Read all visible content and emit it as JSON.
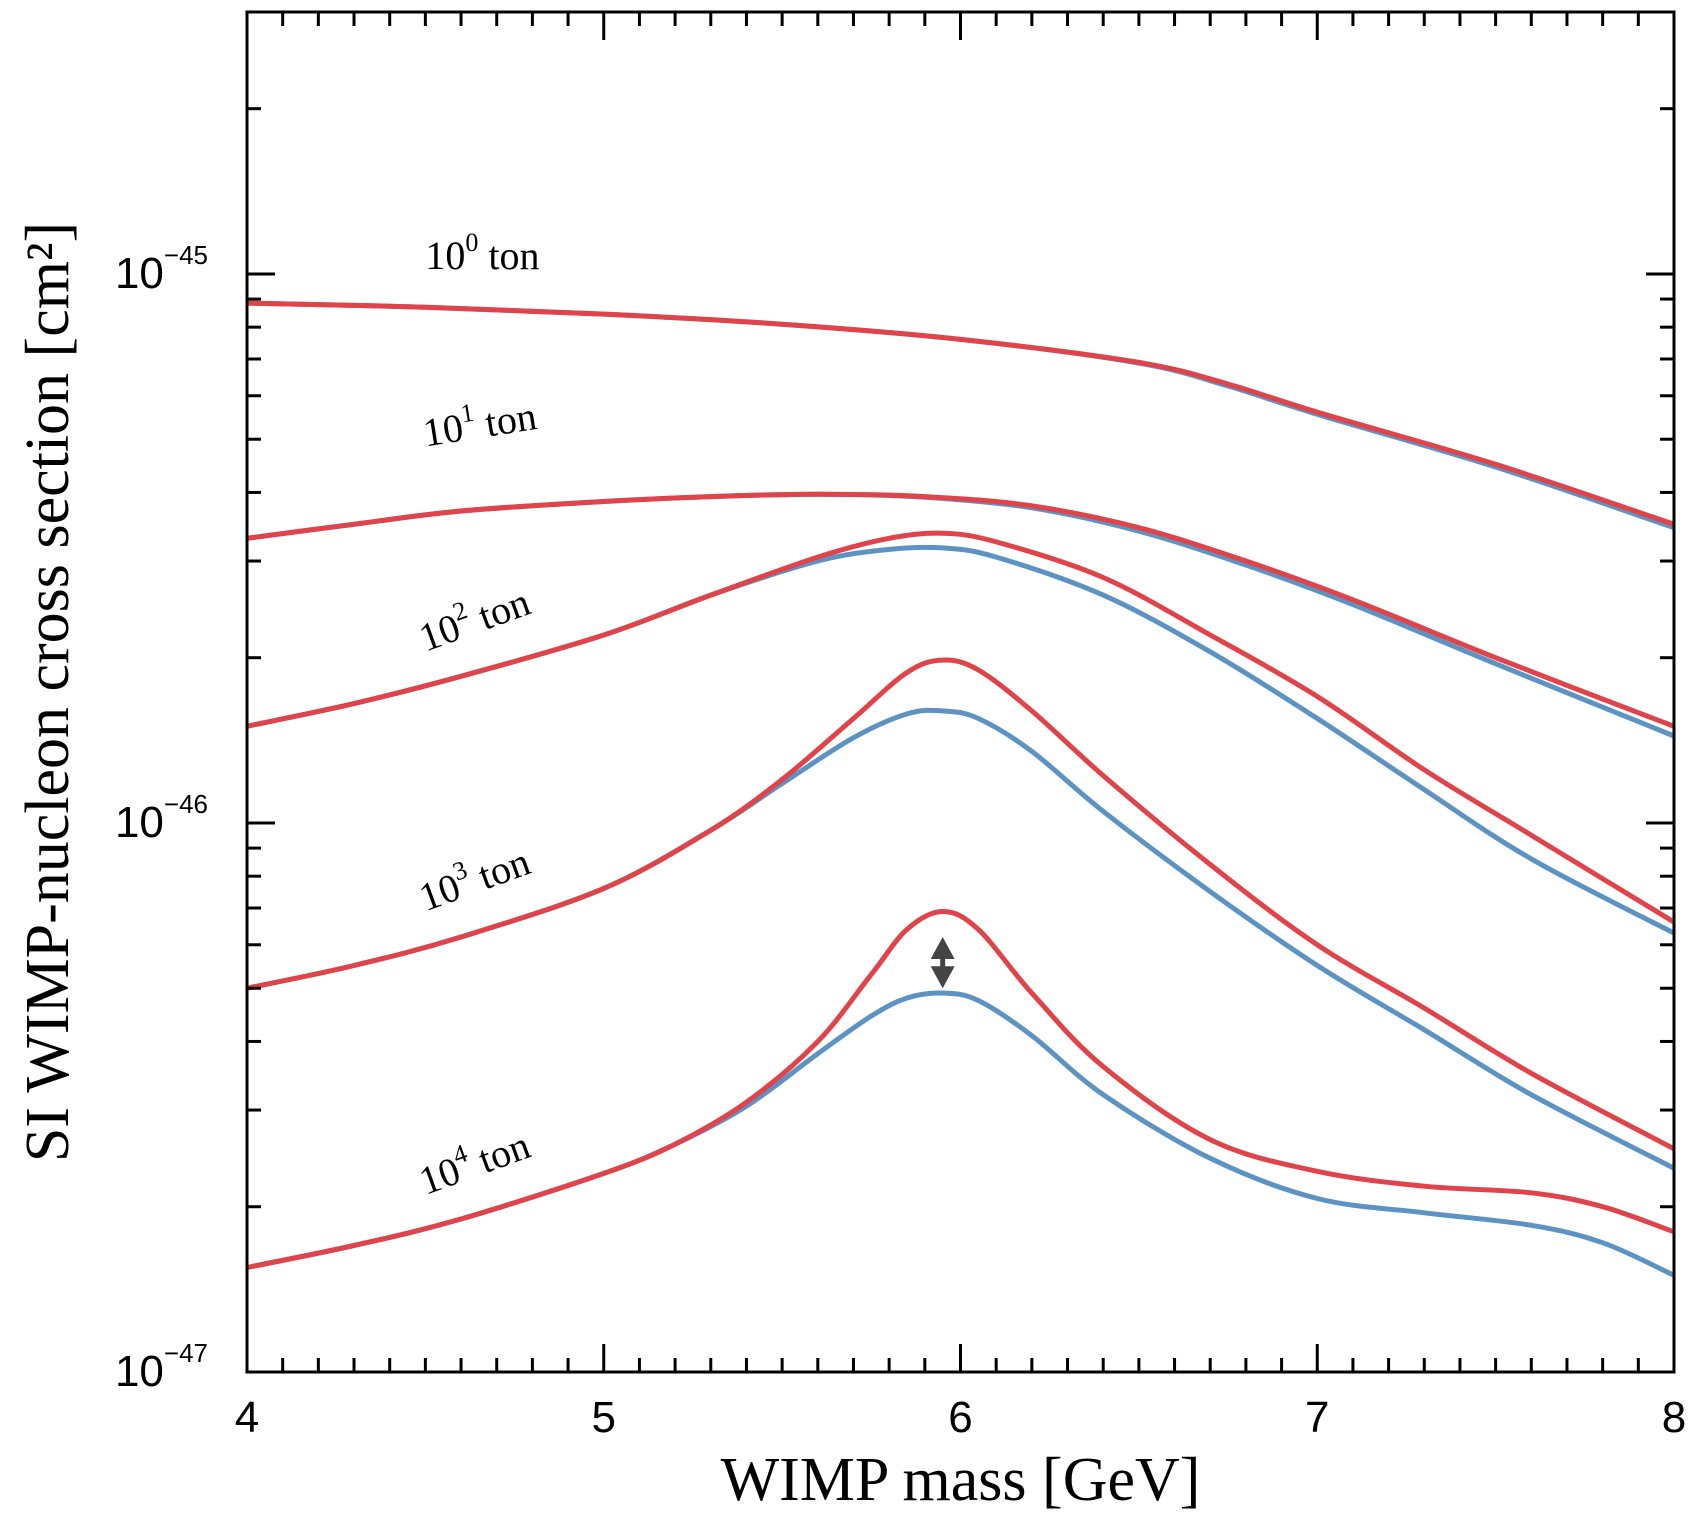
{
  "chart_data": {
    "type": "line",
    "xlabel": "WIMP mass [GeV]",
    "ylabel": "SI WIMP-nucleon cross section [cm²]",
    "xlim": [
      4,
      8
    ],
    "ylim": [
      1e-47,
      3e-45
    ],
    "yscale": "log",
    "x_ticks": [
      {
        "value": 4,
        "label": "4"
      },
      {
        "value": 5,
        "label": "5"
      },
      {
        "value": 6,
        "label": "6"
      },
      {
        "value": 7,
        "label": "7"
      },
      {
        "value": 8,
        "label": "8"
      }
    ],
    "y_ticks": [
      {
        "value": 1e-47,
        "base": "10",
        "exp": "−47"
      },
      {
        "value": 1e-46,
        "base": "10",
        "exp": "−46"
      },
      {
        "value": 1e-45,
        "base": "10",
        "exp": "−45"
      }
    ],
    "grid": false,
    "colors": {
      "red": "#e0434a",
      "blue": "#5d93c3",
      "arrow": "#444444"
    },
    "curves": [
      {
        "label_base": "10",
        "label_exp": "0",
        "label_unit": " ton",
        "label_x": 4.5,
        "label_y": 1.02e-45,
        "label_angle": 0,
        "x": [
          4.0,
          4.5,
          5.0,
          5.5,
          6.0,
          6.5,
          6.75,
          7.0,
          7.5,
          8.0
        ],
        "red": [
          8.85e-46,
          8.7e-46,
          8.45e-46,
          8.1e-46,
          7.6e-46,
          6.9e-46,
          6.3e-46,
          5.6e-46,
          4.5e-46,
          3.5e-46
        ],
        "blue": [
          8.85e-46,
          8.7e-46,
          8.45e-46,
          8.1e-46,
          7.6e-46,
          6.88e-46,
          6.25e-46,
          5.55e-46,
          4.45e-46,
          3.45e-46
        ]
      },
      {
        "label_base": "10",
        "label_exp": "1",
        "label_unit": " ton",
        "label_x": 4.5,
        "label_y": 4.85e-46,
        "label_angle": -9,
        "x": [
          4.0,
          4.3,
          4.6,
          5.0,
          5.3,
          5.6,
          5.9,
          6.2,
          6.5,
          6.8,
          7.1,
          7.5,
          8.0
        ],
        "red": [
          3.3e-46,
          3.5e-46,
          3.7e-46,
          3.85e-46,
          3.93e-46,
          3.97e-46,
          3.93e-46,
          3.78e-46,
          3.45e-46,
          3e-46,
          2.55e-46,
          2e-46,
          1.5e-46
        ],
        "blue": [
          3.3e-46,
          3.5e-46,
          3.7e-46,
          3.85e-46,
          3.93e-46,
          3.97e-46,
          3.92e-46,
          3.75e-46,
          3.4e-46,
          2.95e-46,
          2.5e-46,
          1.95e-46,
          1.44e-46
        ]
      },
      {
        "label_base": "10",
        "label_exp": "2",
        "label_unit": " ton",
        "label_x": 4.5,
        "label_y": 2.05e-46,
        "label_angle": -20,
        "x": [
          4.0,
          4.3,
          4.6,
          5.0,
          5.3,
          5.6,
          5.8,
          5.95,
          6.1,
          6.4,
          6.7,
          7.0,
          7.3,
          7.6,
          8.0
        ],
        "red": [
          1.5e-46,
          1.65e-46,
          1.85e-46,
          2.2e-46,
          2.6e-46,
          3.05e-46,
          3.3e-46,
          3.37e-46,
          3.25e-46,
          2.8e-46,
          2.2e-46,
          1.7e-46,
          1.25e-46,
          9.5e-47,
          6.6e-47
        ],
        "blue": [
          1.5e-46,
          1.65e-46,
          1.85e-46,
          2.2e-46,
          2.6e-46,
          3e-46,
          3.15e-46,
          3.17e-46,
          3.05e-46,
          2.6e-46,
          2.05e-46,
          1.55e-46,
          1.15e-46,
          8.6e-47,
          6.3e-47
        ]
      },
      {
        "label_base": "10",
        "label_exp": "3",
        "label_unit": " ton",
        "label_x": 4.5,
        "label_y": 6.9e-47,
        "label_angle": -20,
        "x": [
          4.0,
          4.3,
          4.6,
          5.0,
          5.3,
          5.5,
          5.7,
          5.85,
          5.95,
          6.05,
          6.2,
          6.4,
          6.7,
          7.0,
          7.3,
          7.6,
          8.0
        ],
        "red": [
          5e-47,
          5.5e-47,
          6.2e-47,
          7.6e-47,
          9.7e-47,
          1.2e-46,
          1.55e-46,
          1.88e-46,
          1.98e-46,
          1.9e-46,
          1.6e-46,
          1.22e-46,
          8.4e-47,
          6e-47,
          4.6e-47,
          3.5e-47,
          2.55e-47
        ],
        "blue": [
          5e-47,
          5.5e-47,
          6.2e-47,
          7.6e-47,
          9.7e-47,
          1.18e-46,
          1.43e-46,
          1.58e-46,
          1.6e-46,
          1.55e-46,
          1.35e-46,
          1.05e-46,
          7.5e-47,
          5.5e-47,
          4.2e-47,
          3.2e-47,
          2.35e-47
        ]
      },
      {
        "label_base": "10",
        "label_exp": "4",
        "label_unit": " ton",
        "label_x": 4.5,
        "label_y": 2.1e-47,
        "label_angle": -20,
        "x": [
          4.0,
          4.3,
          4.6,
          5.0,
          5.2,
          5.4,
          5.6,
          5.75,
          5.85,
          5.95,
          6.05,
          6.2,
          6.4,
          6.7,
          7.0,
          7.3,
          7.6,
          7.8,
          8.0
        ],
        "red": [
          1.55e-47,
          1.7e-47,
          1.9e-47,
          2.3e-47,
          2.6e-47,
          3.1e-47,
          4e-47,
          5.3e-47,
          6.4e-47,
          6.9e-47,
          6.4e-47,
          4.9e-47,
          3.6e-47,
          2.65e-47,
          2.32e-47,
          2.18e-47,
          2.12e-47,
          2e-47,
          1.8e-47
        ],
        "blue": [
          1.55e-47,
          1.7e-47,
          1.9e-47,
          2.3e-47,
          2.6e-47,
          3.05e-47,
          3.8e-47,
          4.45e-47,
          4.8e-47,
          4.9e-47,
          4.75e-47,
          4.1e-47,
          3.2e-47,
          2.45e-47,
          2.07e-47,
          1.95e-47,
          1.85e-47,
          1.72e-47,
          1.5e-47
        ]
      }
    ],
    "arrow": {
      "x": 5.95,
      "y_top": 6.2e-47,
      "y_bottom": 5e-47
    }
  }
}
